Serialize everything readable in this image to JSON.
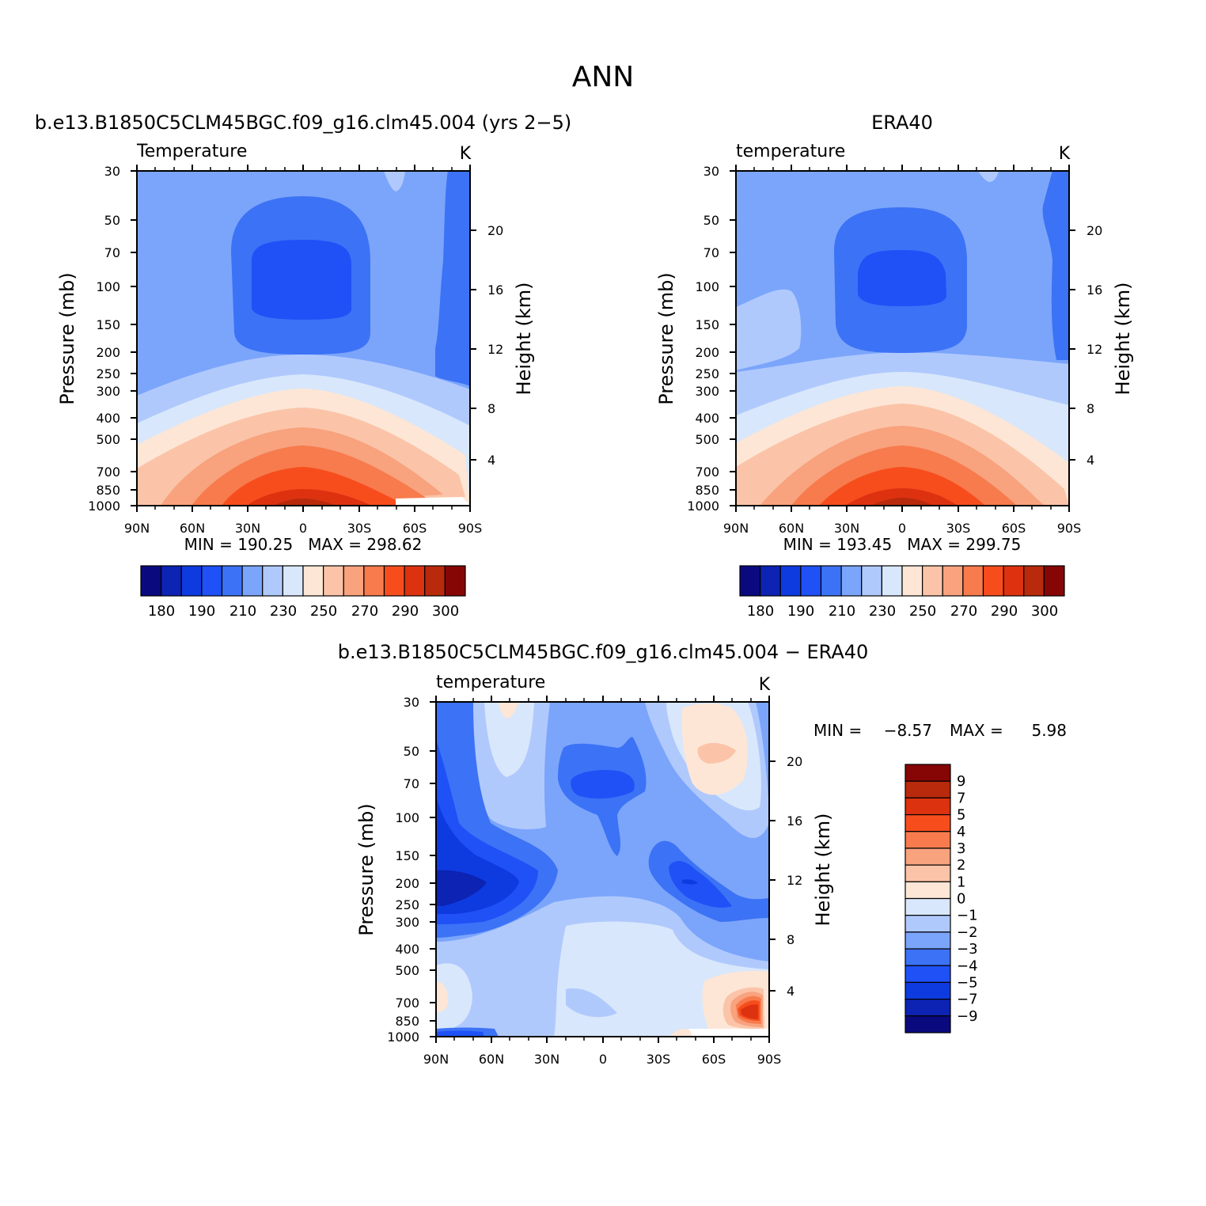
{
  "main_title": "ANN",
  "chart_data": [
    {
      "type": "heatmap",
      "title": "b.e13.B1850C5CLM45BGC.f09_g16.clm45.004 (yrs 2−5)",
      "variable": "Temperature",
      "units": "K",
      "ylabel": "Pressure (mb)",
      "y2label": "Height (km)",
      "x_ticks": [
        "90N",
        "60N",
        "30N",
        "0",
        "30S",
        "60S",
        "90S"
      ],
      "y_ticks": [
        "30",
        "50",
        "70",
        "100",
        "150",
        "200",
        "250",
        "300",
        "400",
        "500",
        "700",
        "850",
        "1000"
      ],
      "y2_ticks": [
        "20",
        "16",
        "12",
        "8",
        "4"
      ],
      "xlim": [
        90,
        -90
      ],
      "ylim": [
        1000,
        30
      ],
      "y_scale": "log",
      "stats": "MIN = 190.25   MAX = 298.62",
      "min": 190.25,
      "max": 298.62,
      "colorbar": {
        "orientation": "horizontal",
        "labels": [
          "180",
          "190",
          "210",
          "230",
          "250",
          "270",
          "290",
          "300"
        ],
        "colors": [
          "#0a0a7e",
          "#0c23b3",
          "#0e3be0",
          "#1f51f7",
          "#3c72f5",
          "#7ba5fb",
          "#b0c9fd",
          "#d8e7fb",
          "#fde6d6",
          "#fbc4a8",
          "#f8a27e",
          "#f77b4d",
          "#f74d1d",
          "#dc3210",
          "#b82a0b",
          "#860606"
        ]
      }
    },
    {
      "type": "heatmap",
      "title": "ERA40",
      "variable": "temperature",
      "units": "K",
      "ylabel": "Pressure (mb)",
      "y2label": "Height (km)",
      "x_ticks": [
        "90N",
        "60N",
        "30N",
        "0",
        "30S",
        "60S",
        "90S"
      ],
      "y_ticks": [
        "30",
        "50",
        "70",
        "100",
        "150",
        "200",
        "250",
        "300",
        "400",
        "500",
        "700",
        "850",
        "1000"
      ],
      "y2_ticks": [
        "20",
        "16",
        "12",
        "8",
        "4"
      ],
      "xlim": [
        90,
        -90
      ],
      "ylim": [
        1000,
        30
      ],
      "y_scale": "log",
      "stats": "MIN = 193.45   MAX = 299.75",
      "min": 193.45,
      "max": 299.75,
      "colorbar": {
        "orientation": "horizontal",
        "labels": [
          "180",
          "190",
          "210",
          "230",
          "250",
          "270",
          "290",
          "300"
        ],
        "colors": [
          "#0a0a7e",
          "#0c23b3",
          "#0e3be0",
          "#1f51f7",
          "#3c72f5",
          "#7ba5fb",
          "#b0c9fd",
          "#d8e7fb",
          "#fde6d6",
          "#fbc4a8",
          "#f8a27e",
          "#f77b4d",
          "#f74d1d",
          "#dc3210",
          "#b82a0b",
          "#860606"
        ]
      }
    },
    {
      "type": "heatmap",
      "title": "b.e13.B1850C5CLM45BGC.f09_g16.clm45.004 − ERA40",
      "variable": "temperature",
      "units": "K",
      "ylabel": "Pressure (mb)",
      "y2label": "Height (km)",
      "x_ticks": [
        "90N",
        "60N",
        "30N",
        "0",
        "30S",
        "60S",
        "90S"
      ],
      "y_ticks": [
        "30",
        "50",
        "70",
        "100",
        "150",
        "200",
        "250",
        "300",
        "400",
        "500",
        "700",
        "850",
        "1000"
      ],
      "y2_ticks": [
        "20",
        "16",
        "12",
        "8",
        "4"
      ],
      "xlim": [
        90,
        -90
      ],
      "ylim": [
        1000,
        30
      ],
      "y_scale": "log",
      "stats_min_label": "MIN =",
      "stats_min_value": "−8.57",
      "stats_max_label": "MAX =",
      "stats_max_value": "5.98",
      "min": -8.57,
      "max": 5.98,
      "colorbar": {
        "orientation": "vertical",
        "labels": [
          "9",
          "7",
          "5",
          "4",
          "3",
          "2",
          "1",
          "0",
          "−1",
          "−2",
          "−3",
          "−4",
          "−5",
          "−7",
          "−9"
        ],
        "colors": [
          "#860606",
          "#b82a0b",
          "#dc3210",
          "#f74d1d",
          "#f77b4d",
          "#f8a27e",
          "#fbc4a8",
          "#fde6d6",
          "#d8e7fb",
          "#b0c9fd",
          "#7ba5fb",
          "#3c72f5",
          "#1f51f7",
          "#0e3be0",
          "#0c23b3",
          "#0a0a7e"
        ]
      }
    }
  ]
}
